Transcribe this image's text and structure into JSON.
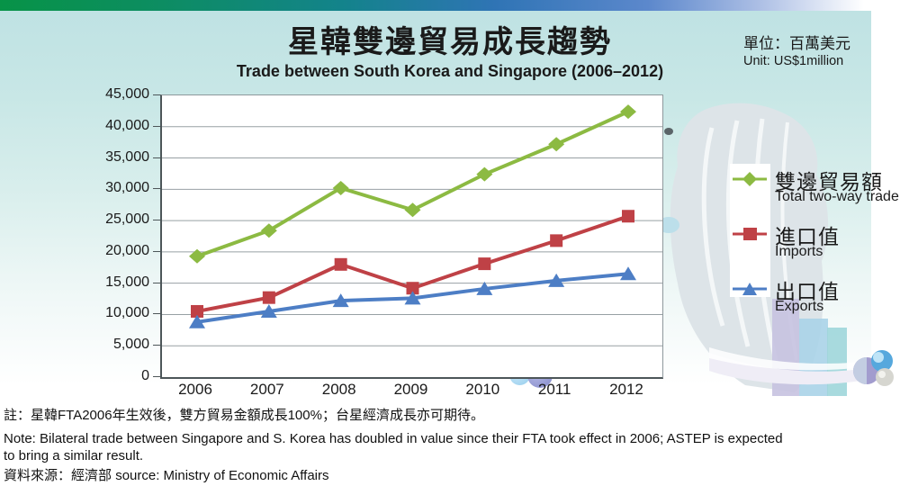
{
  "header": {
    "title_zh": "星韓雙邊貿易成長趨勢",
    "title_en": "Trade between South Korea and Singapore (2006–2012)",
    "unit_zh": "單位：百萬美元",
    "unit_en": "Unit: US$1million"
  },
  "chart_data": {
    "type": "line",
    "title": "星韓雙邊貿易成長趨勢 / Trade between South Korea and Singapore (2006–2012)",
    "unit": "US$1million",
    "categories": [
      "2006",
      "2007",
      "2008",
      "2009",
      "2010",
      "2011",
      "2012"
    ],
    "series": [
      {
        "name_zh": "雙邊貿易額",
        "name_en": "Total two-way trade",
        "marker": "diamond",
        "color": "#8cba42",
        "values": [
          19300,
          23400,
          30200,
          26700,
          32400,
          37200,
          42400
        ]
      },
      {
        "name_zh": "進口值",
        "name_en": "Imports",
        "marker": "square",
        "color": "#bf4146",
        "values": [
          10500,
          12700,
          18000,
          14200,
          18100,
          21800,
          25700
        ]
      },
      {
        "name_zh": "出口值",
        "name_en": "Exports",
        "marker": "triangle",
        "color": "#4d7ec5",
        "values": [
          8800,
          10500,
          12200,
          12600,
          14100,
          15400,
          16500
        ]
      }
    ],
    "ylim": [
      0,
      45000
    ],
    "ytick_step": 5000,
    "yticks": [
      "45,000",
      "40,000",
      "35,000",
      "30,000",
      "25,000",
      "20,000",
      "15,000",
      "10,000",
      "5,000",
      "0"
    ],
    "xlabel": "",
    "ylabel": "",
    "grid": true,
    "legend_position": "right"
  },
  "decor": {
    "merlion_color": "#dde4e8",
    "skyline_colors": [
      "#c7c2e0",
      "#aad3e8",
      "#9ed6da"
    ],
    "sphere_colors": [
      "#a29cce",
      "#56a8dd",
      "#d6d6d0"
    ]
  },
  "footer": {
    "note_zh": "註：星韓FTA2006年生效後，雙方貿易金額成長100%；台星經濟成長亦可期待。",
    "note_en_line1": "Note: Bilateral trade between Singapore and S. Korea has doubled in value since their FTA took effect in 2006; ASTEP is expected",
    "note_en_line2": "to bring a similar result.",
    "source_zh": "資料來源：經濟部",
    "source_en": "source: Ministry of Economic Affairs"
  }
}
